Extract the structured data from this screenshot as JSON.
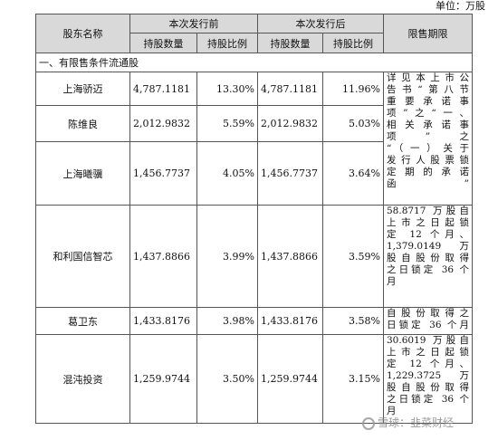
{
  "unit_label": "单位：万股",
  "header": {
    "shareholder": "股东名称",
    "before": "本次发行前",
    "after": "本次发行后",
    "lock": "限售期限",
    "shares": "持股数量",
    "ratio": "持股比例"
  },
  "section_title": "一、有限售条件流通股",
  "rows": [
    {
      "name": "上海骄迈",
      "before_shares": "4,787.1181",
      "before_ratio": "13.30%",
      "after_shares": "4,787.1181",
      "after_ratio": "11.96%"
    },
    {
      "name": "陈维良",
      "before_shares": "2,012.9832",
      "before_ratio": "5.59%",
      "after_shares": "2,012.9832",
      "after_ratio": "5.03%"
    },
    {
      "name": "上海曦骥",
      "before_shares": "1,456.7737",
      "before_ratio": "4.05%",
      "after_shares": "1,456.7737",
      "after_ratio": "3.64%"
    },
    {
      "name": "和利国信智芯",
      "before_shares": "1,437.8866",
      "before_ratio": "3.99%",
      "after_shares": "1,437.8866",
      "after_ratio": "3.59%"
    },
    {
      "name": "葛卫东",
      "before_shares": "1,433.8176",
      "before_ratio": "3.98%",
      "after_shares": "1,433.8176",
      "after_ratio": "3.58%"
    },
    {
      "name": "混沌投资",
      "before_shares": "1,259.9744",
      "before_ratio": "3.50%",
      "after_shares": "1,259.9744",
      "after_ratio": "3.15%"
    }
  ],
  "lock_notes": {
    "group1": [
      "详见本上市公",
      "告书“第八节",
      "重要承诺事",
      "项”之“一、",
      "相关承诺事",
      "项”之",
      "“（一）关于",
      "发行人股票锁",
      "定期的承诺",
      "函”"
    ],
    "hl": [
      "58.8717 万股自",
      "上市之日起锁",
      "定 12 个月、",
      "1,379.0149 万",
      "股自股份取得",
      "之日锁定 36 个",
      "月"
    ],
    "ge": [
      "自股份取得之",
      "日锁定 36 个月"
    ],
    "hd": [
      "30.6019 万股自",
      "上市之日起锁",
      "定 12 个月、",
      "1,229.3725 万",
      "股自股份取得",
      "之日锁定 36 个",
      "月"
    ]
  },
  "watermark": "雪球：韭菜财经"
}
